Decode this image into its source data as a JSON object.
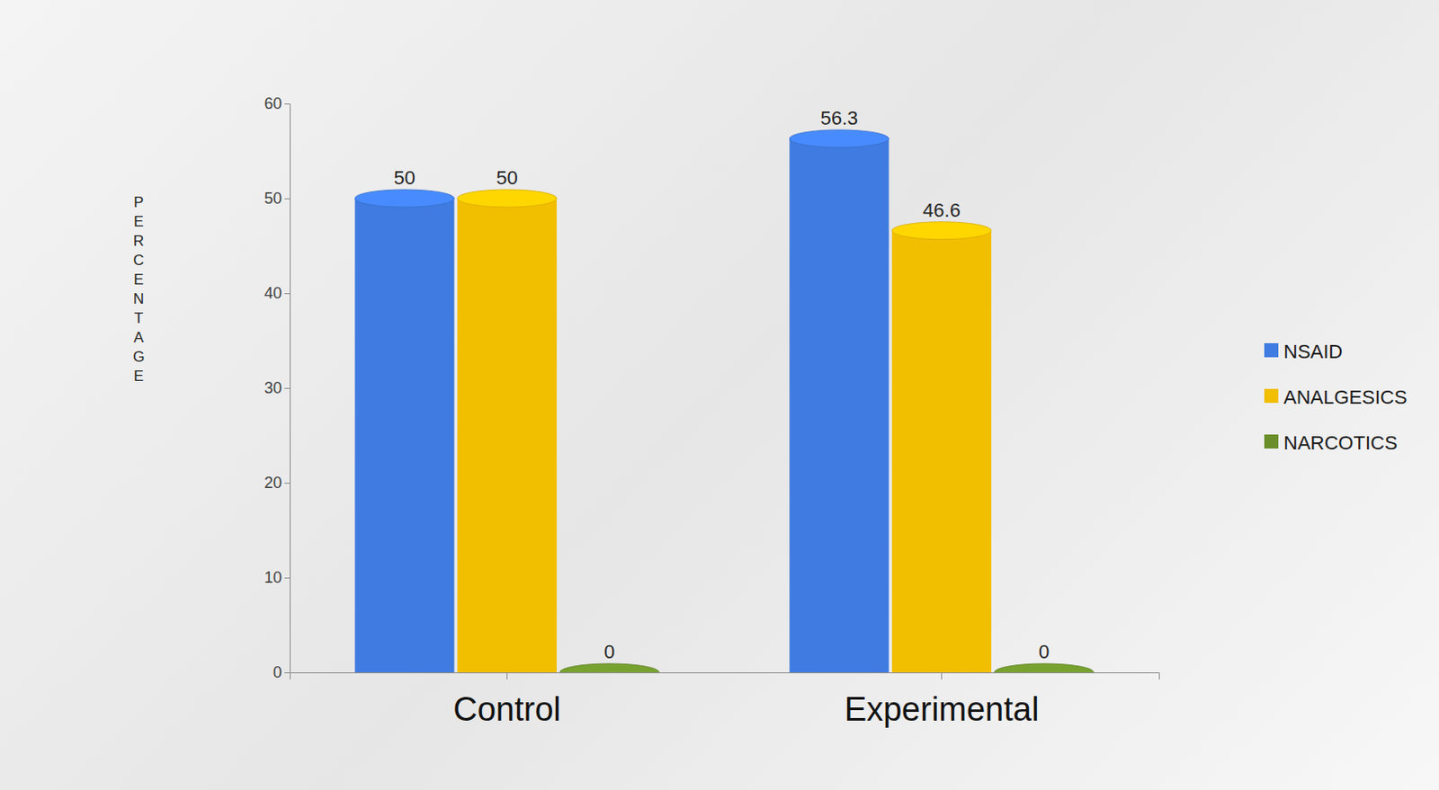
{
  "chart_data": {
    "type": "bar",
    "categories": [
      "Control",
      "Experimental"
    ],
    "series": [
      {
        "name": "NSAID",
        "color": "#3f7be0",
        "values": [
          50,
          56.3
        ]
      },
      {
        "name": "ANALGESICS",
        "color": "#f2be00",
        "values": [
          50,
          46.6
        ]
      },
      {
        "name": "NARCOTICS",
        "color": "#6a8f2a",
        "values": [
          0,
          0
        ]
      }
    ],
    "y_label": "PERCENTAGE",
    "ylim": [
      0,
      60
    ],
    "yticks": [
      0,
      10,
      20,
      30,
      40,
      50,
      60
    ],
    "data_labels": true,
    "legend": "right"
  }
}
